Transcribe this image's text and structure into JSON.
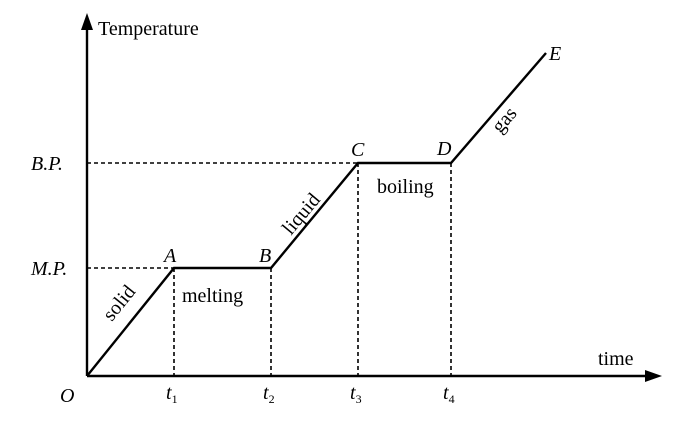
{
  "axes": {
    "y_label": "Temperature",
    "x_label": "time",
    "origin_label": "O"
  },
  "temperature_labels": {
    "melting_point": "M.P.",
    "boiling_point": "B.P."
  },
  "time_ticks": [
    {
      "base": "t",
      "sub": "1"
    },
    {
      "base": "t",
      "sub": "2"
    },
    {
      "base": "t",
      "sub": "3"
    },
    {
      "base": "t",
      "sub": "4"
    }
  ],
  "points": {
    "a": "A",
    "b": "B",
    "c": "C",
    "d": "D",
    "e": "E"
  },
  "segments": {
    "solid": "solid",
    "melting": "melting",
    "liquid": "liquid",
    "boiling": "boiling",
    "gas": "gas"
  },
  "colors": {
    "line": "#000000",
    "background": "#ffffff"
  }
}
